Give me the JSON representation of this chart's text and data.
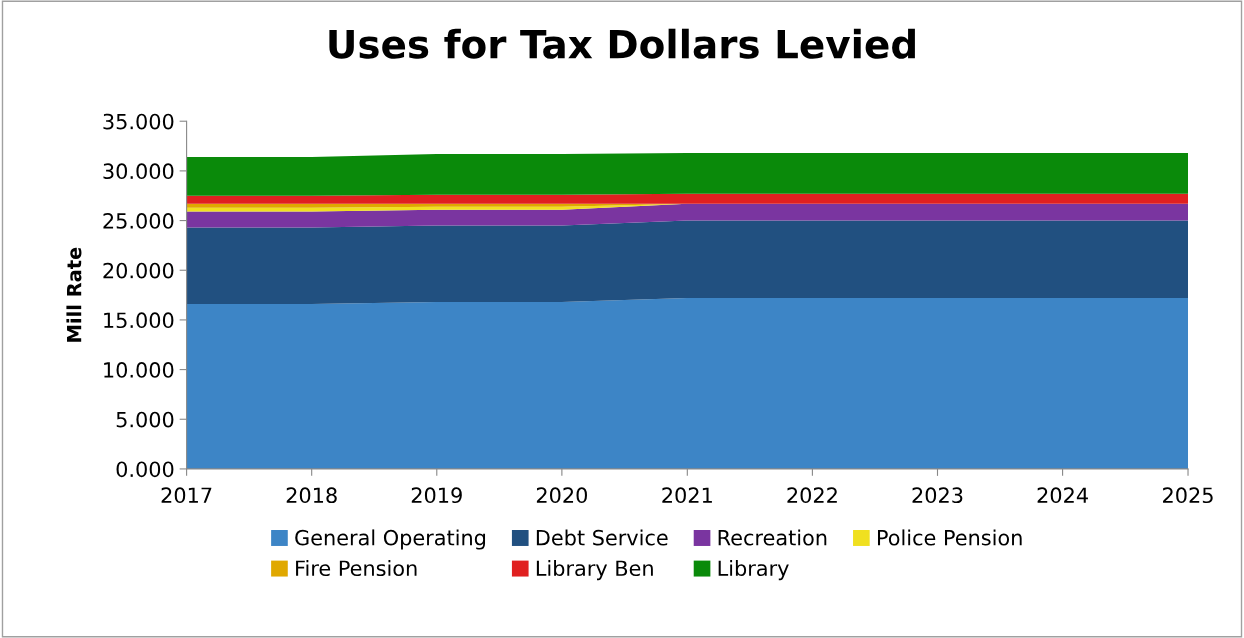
{
  "chart_data": {
    "type": "area",
    "stacked": true,
    "title": "Uses for Tax Dollars Levied",
    "ylabel": "Mill Rate",
    "x": [
      "2017",
      "2018",
      "2019",
      "2020",
      "2021",
      "2022",
      "2023",
      "2024",
      "2025"
    ],
    "xlim": [
      "2017",
      "2025"
    ],
    "xticks": [
      "2017",
      "2018",
      "2019",
      "2020",
      "2021",
      "2022",
      "2023",
      "2024",
      "2025"
    ],
    "ylim": [
      0,
      35
    ],
    "yticks": [
      {
        "value": 0,
        "label": "0.000"
      },
      {
        "value": 5,
        "label": "5.000"
      },
      {
        "value": 10,
        "label": "10.000"
      },
      {
        "value": 15,
        "label": "15.000"
      },
      {
        "value": 20,
        "label": "20.000"
      },
      {
        "value": 25,
        "label": "25.000"
      },
      {
        "value": 30,
        "label": "30.000"
      },
      {
        "value": 35,
        "label": "35.000"
      }
    ],
    "grid": false,
    "legend": "bottom",
    "series": [
      {
        "name": "General Operating",
        "color": "#3d85c6",
        "values": [
          16.6,
          16.6,
          16.8,
          16.8,
          17.2,
          17.2,
          17.2,
          17.2,
          17.2
        ]
      },
      {
        "name": "Debt Service",
        "color": "#215080",
        "values": [
          7.7,
          7.7,
          7.7,
          7.7,
          7.8,
          7.8,
          7.8,
          7.8,
          7.8
        ]
      },
      {
        "name": "Recreation",
        "color": "#7a35a0",
        "values": [
          1.6,
          1.6,
          1.6,
          1.6,
          1.7,
          1.7,
          1.7,
          1.7,
          1.7
        ]
      },
      {
        "name": "Police Pension",
        "color": "#f0e020",
        "values": [
          0.4,
          0.4,
          0.3,
          0.3,
          0,
          0,
          0,
          0,
          0
        ]
      },
      {
        "name": "Fire Pension",
        "color": "#e0a800",
        "values": [
          0.4,
          0.4,
          0.3,
          0.3,
          0,
          0,
          0,
          0,
          0
        ]
      },
      {
        "name": "Library Ben",
        "color": "#e02020",
        "values": [
          0.8,
          0.8,
          0.9,
          0.9,
          1.0,
          1.0,
          1.0,
          1.0,
          1.0
        ]
      },
      {
        "name": "Library",
        "color": "#0a8a0a",
        "values": [
          3.9,
          3.9,
          4.1,
          4.1,
          4.1,
          4.1,
          4.1,
          4.1,
          4.1
        ]
      }
    ]
  }
}
